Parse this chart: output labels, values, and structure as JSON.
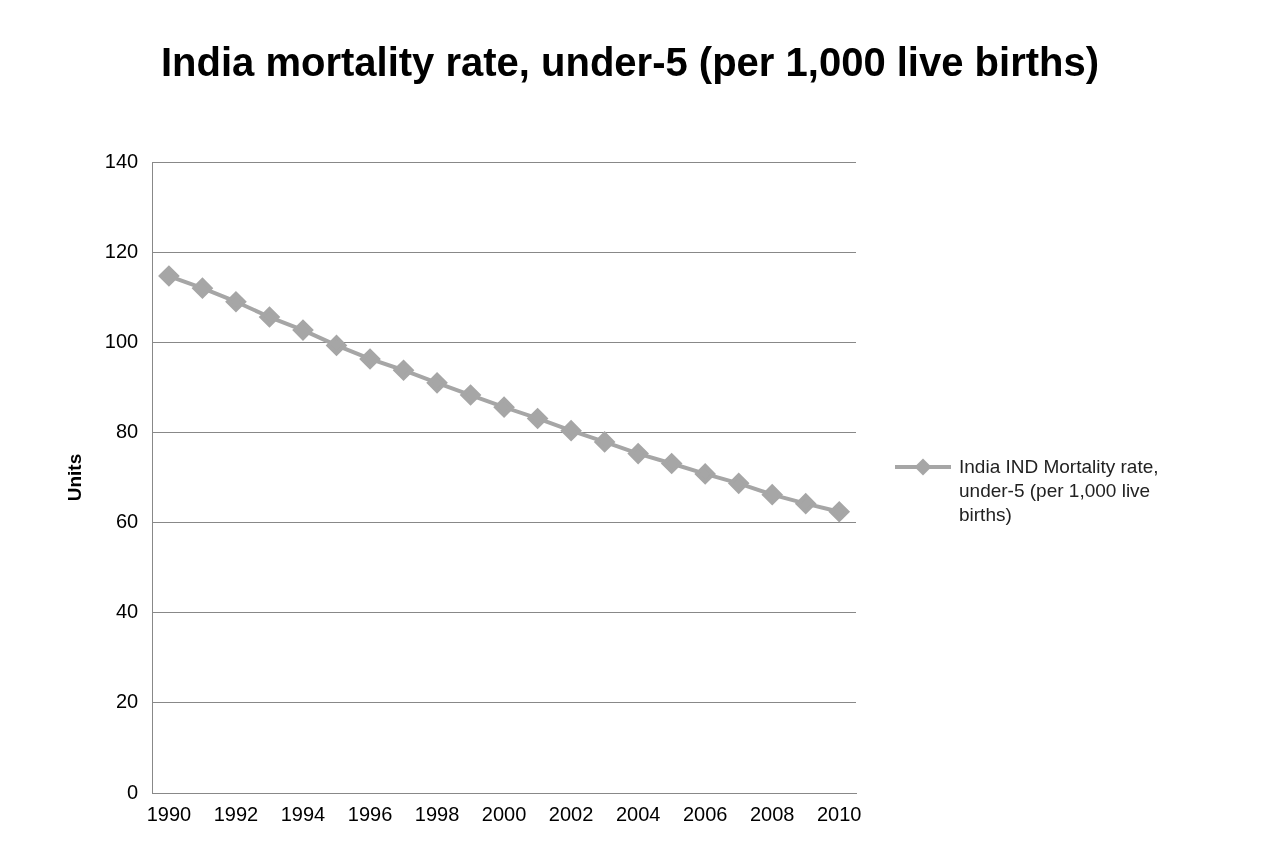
{
  "chart_data": {
    "type": "line",
    "title": "India mortality rate, under-5 (per 1,000 live births)",
    "ylabel": "Units",
    "categories": [
      "1990",
      null,
      "1992",
      null,
      "1994",
      null,
      "1996",
      null,
      "1998",
      null,
      "2000",
      null,
      "2002",
      null,
      "2004",
      null,
      "2006",
      null,
      "2008",
      null,
      "2010"
    ],
    "series": [
      {
        "name": "India IND Mortality rate, under-5 (per 1,000 live births)",
        "color": "#a6a6a6",
        "values": [
          114.7,
          112,
          109,
          105.6,
          102.7,
          99.3,
          96.3,
          93.8,
          91,
          88.3,
          85.6,
          83.1,
          80.4,
          77.9,
          75.3,
          73.1,
          70.8,
          68.7,
          66.2,
          64.2,
          62.4
        ]
      }
    ],
    "ylim": [
      0,
      140
    ],
    "yticks": [
      0,
      20,
      40,
      60,
      80,
      100,
      120,
      140
    ],
    "grid": "y",
    "legend": "right",
    "marker": "diamond",
    "line_style": "solid"
  }
}
